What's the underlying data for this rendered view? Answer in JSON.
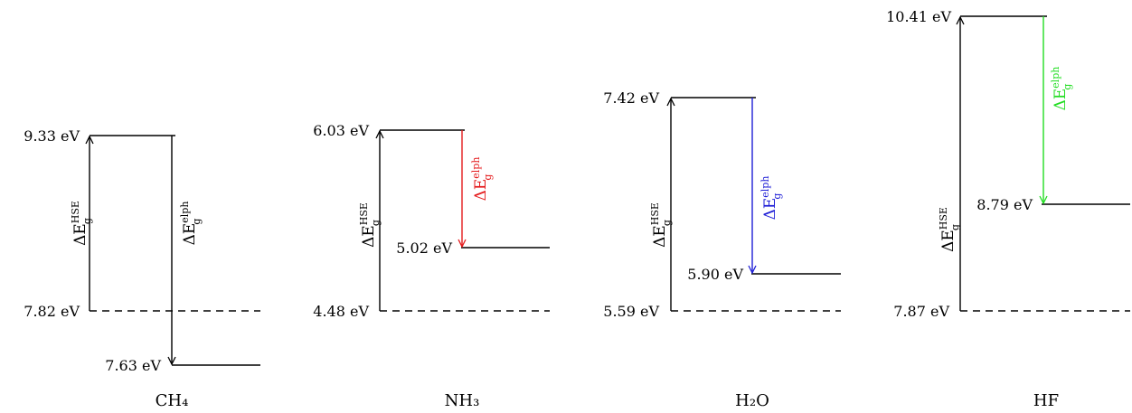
{
  "diagram": {
    "title": "",
    "colors": {
      "black": "#000000",
      "nh3_elph": "#e41a1c",
      "h2o_elph": "#1f1fd6",
      "hf_elph": "#22dd22"
    },
    "symbols": {
      "hse": "HSE",
      "elph": "elph",
      "sub": "g",
      "delta_e": "ΔE"
    },
    "panels": [
      {
        "molecule": "CH₄",
        "top_label": "9.33 eV",
        "bottom_label": "7.82 eV",
        "elph_label": "7.63 eV",
        "elph_color": "black",
        "elph_direction": "down-below-vbm"
      },
      {
        "molecule": "NH₃",
        "top_label": "6.03 eV",
        "bottom_label": "4.48 eV",
        "elph_label": "5.02 eV",
        "elph_color": "red",
        "elph_direction": "down"
      },
      {
        "molecule": "H₂O",
        "top_label": "7.42 eV",
        "bottom_label": "5.59 eV",
        "elph_label": "5.90 eV",
        "elph_color": "blue",
        "elph_direction": "down"
      },
      {
        "molecule": "HF",
        "top_label": "10.41 eV",
        "bottom_label": "7.87 eV",
        "elph_label": "8.79 eV",
        "elph_color": "green",
        "elph_direction": "down"
      }
    ]
  }
}
